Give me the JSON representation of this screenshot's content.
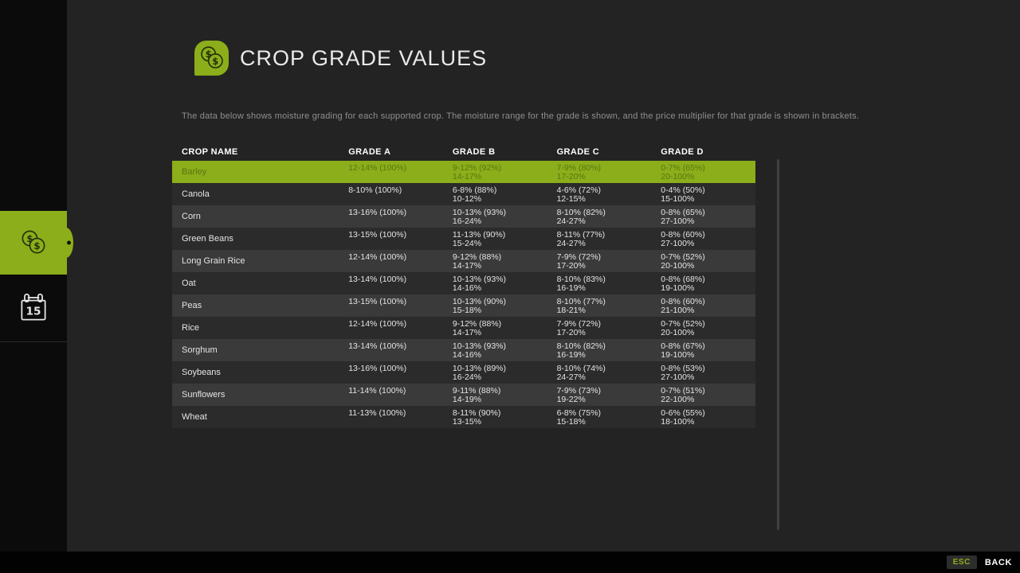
{
  "page": {
    "title": "CROP GRADE VALUES",
    "description": "The data below shows moisture grading for each supported crop. The moisture range for the grade is shown, and the price multiplier for that grade is shown in brackets."
  },
  "colors": {
    "accent_green": "#8bae1a",
    "selected_row_text": "#5a7511",
    "background": "#232323",
    "sidebar_background": "#0b0b0b",
    "row_stripe": "#3a3a3a"
  },
  "icons": {
    "dollar": "$",
    "coins_icon": "coins-icon",
    "calendar_icon": "calendar-icon"
  },
  "sidebar": {
    "tabs": [
      {
        "label": "crop-grade-values",
        "icon": "coins-icon",
        "active": true
      },
      {
        "label": "calendar",
        "icon": "calendar-icon",
        "day": "15",
        "active": false
      }
    ]
  },
  "table": {
    "headers": [
      "CROP NAME",
      "GRADE A",
      "GRADE B",
      "GRADE C",
      "GRADE D"
    ],
    "rows": [
      {
        "name": "Barley",
        "selected": true,
        "grade_a": [
          "12-14% (100%)"
        ],
        "grade_b": [
          "9-12% (92%)",
          "14-17%"
        ],
        "grade_c": [
          "7-9% (80%)",
          "17-20%"
        ],
        "grade_d": [
          "0-7% (65%)",
          "20-100%"
        ]
      },
      {
        "name": "Canola",
        "selected": false,
        "grade_a": [
          "8-10% (100%)"
        ],
        "grade_b": [
          "6-8% (88%)",
          "10-12%"
        ],
        "grade_c": [
          "4-6% (72%)",
          "12-15%"
        ],
        "grade_d": [
          "0-4% (50%)",
          "15-100%"
        ]
      },
      {
        "name": "Corn",
        "selected": false,
        "grade_a": [
          "13-16% (100%)"
        ],
        "grade_b": [
          "10-13% (93%)",
          "16-24%"
        ],
        "grade_c": [
          "8-10% (82%)",
          "24-27%"
        ],
        "grade_d": [
          "0-8% (65%)",
          "27-100%"
        ]
      },
      {
        "name": "Green Beans",
        "selected": false,
        "grade_a": [
          "13-15% (100%)"
        ],
        "grade_b": [
          "11-13% (90%)",
          "15-24%"
        ],
        "grade_c": [
          "8-11% (77%)",
          "24-27%"
        ],
        "grade_d": [
          "0-8% (60%)",
          "27-100%"
        ]
      },
      {
        "name": "Long Grain Rice",
        "selected": false,
        "grade_a": [
          "12-14% (100%)"
        ],
        "grade_b": [
          "9-12% (88%)",
          "14-17%"
        ],
        "grade_c": [
          "7-9% (72%)",
          "17-20%"
        ],
        "grade_d": [
          "0-7% (52%)",
          "20-100%"
        ]
      },
      {
        "name": "Oat",
        "selected": false,
        "grade_a": [
          "13-14% (100%)"
        ],
        "grade_b": [
          "10-13% (93%)",
          "14-16%"
        ],
        "grade_c": [
          "8-10% (83%)",
          "16-19%"
        ],
        "grade_d": [
          "0-8% (68%)",
          "19-100%"
        ]
      },
      {
        "name": "Peas",
        "selected": false,
        "grade_a": [
          "13-15% (100%)"
        ],
        "grade_b": [
          "10-13% (90%)",
          "15-18%"
        ],
        "grade_c": [
          "8-10% (77%)",
          "18-21%"
        ],
        "grade_d": [
          "0-8% (60%)",
          "21-100%"
        ]
      },
      {
        "name": "Rice",
        "selected": false,
        "grade_a": [
          "12-14% (100%)"
        ],
        "grade_b": [
          "9-12% (88%)",
          "14-17%"
        ],
        "grade_c": [
          "7-9% (72%)",
          "17-20%"
        ],
        "grade_d": [
          "0-7% (52%)",
          "20-100%"
        ]
      },
      {
        "name": "Sorghum",
        "selected": false,
        "grade_a": [
          "13-14% (100%)"
        ],
        "grade_b": [
          "10-13% (93%)",
          "14-16%"
        ],
        "grade_c": [
          "8-10% (82%)",
          "16-19%"
        ],
        "grade_d": [
          "0-8% (67%)",
          "19-100%"
        ]
      },
      {
        "name": "Soybeans",
        "selected": false,
        "grade_a": [
          "13-16% (100%)"
        ],
        "grade_b": [
          "10-13% (89%)",
          "16-24%"
        ],
        "grade_c": [
          "8-10% (74%)",
          "24-27%"
        ],
        "grade_d": [
          "0-8% (53%)",
          "27-100%"
        ]
      },
      {
        "name": "Sunflowers",
        "selected": false,
        "grade_a": [
          "11-14% (100%)"
        ],
        "grade_b": [
          "9-11% (88%)",
          "14-19%"
        ],
        "grade_c": [
          "7-9% (73%)",
          "19-22%"
        ],
        "grade_d": [
          "0-7% (51%)",
          "22-100%"
        ]
      },
      {
        "name": "Wheat",
        "selected": false,
        "grade_a": [
          "11-13% (100%)"
        ],
        "grade_b": [
          "8-11% (90%)",
          "13-15%"
        ],
        "grade_c": [
          "6-8% (75%)",
          "15-18%"
        ],
        "grade_d": [
          "0-6% (55%)",
          "18-100%"
        ]
      }
    ]
  },
  "footer": {
    "esc_key": "ESC",
    "back_label": "BACK"
  }
}
